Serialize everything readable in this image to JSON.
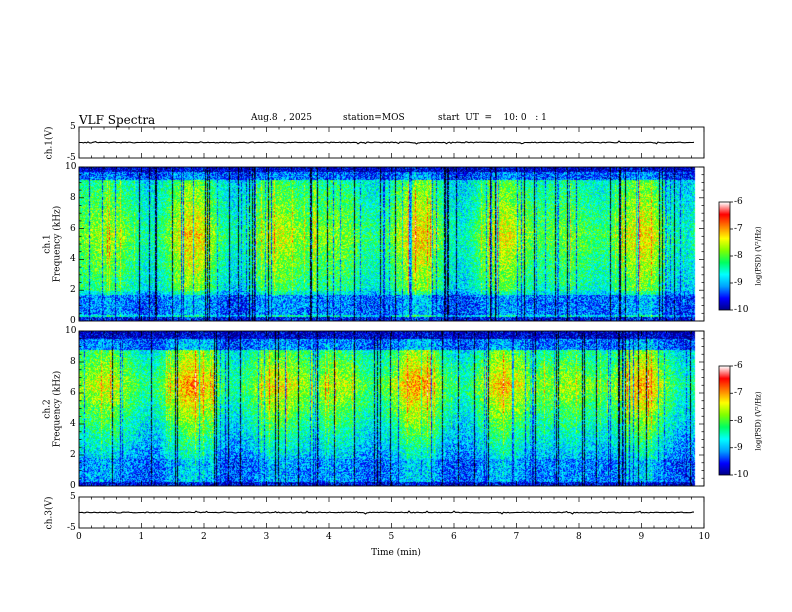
{
  "header": {
    "title": "VLF Spectra",
    "date": "Aug.8  , 2025",
    "station": "station=MOS",
    "start_ut": "start  UT  =    10: 0   : 1"
  },
  "colors": {
    "colormap": [
      "#000080",
      "#0000ff",
      "#00a0ff",
      "#00ffff",
      "#00ff60",
      "#80ff00",
      "#ffff00",
      "#ff8000",
      "#ff0000",
      "#ffffff"
    ],
    "axes": "#000000",
    "trace": "#000000"
  },
  "chart_data": [
    {
      "type": "line",
      "name": "ch1-waveform",
      "ylabel": "ch.1(V)",
      "ylim": [
        -5,
        5
      ],
      "yticks": [
        "5",
        "-5"
      ],
      "x_range_min": [
        0,
        9.85
      ],
      "approx_level": 0
    },
    {
      "type": "heatmap",
      "name": "ch1-spectrogram",
      "ylabel": "ch.1\nFrequency (kHz)",
      "ylabel_line1": "ch.1",
      "ylabel_line2": "Frequency (kHz)",
      "ylim": [
        0,
        10
      ],
      "yticks": [
        "0",
        "2",
        "4",
        "6",
        "8",
        "10"
      ],
      "xlim": [
        0,
        10
      ],
      "data_end_min": 9.85,
      "peak_band_khz": [
        2,
        9
      ],
      "colorbar": {
        "label": "log(PSD) (V²/Hz)",
        "range": [
          -10,
          -6
        ],
        "ticks": [
          "-6",
          "-7",
          "-8",
          "-9",
          "-10"
        ]
      }
    },
    {
      "type": "heatmap",
      "name": "ch2-spectrogram",
      "ylabel_line1": "ch.2",
      "ylabel_line2": "Frequency (kHz)",
      "ylim": [
        0,
        10
      ],
      "yticks": [
        "0",
        "2",
        "4",
        "6",
        "8",
        "10"
      ],
      "xlim": [
        0,
        10
      ],
      "data_end_min": 9.85,
      "peak_band_khz": [
        5,
        8
      ],
      "colorbar": {
        "label": "log(PSD) (V²/Hz)",
        "range": [
          -10,
          -6
        ],
        "ticks": [
          "-6",
          "-7",
          "-8",
          "-9",
          "-10"
        ]
      }
    },
    {
      "type": "line",
      "name": "ch3-waveform",
      "ylabel": "ch.3(V)",
      "ylim": [
        -5,
        5
      ],
      "yticks": [
        "5",
        "-5"
      ],
      "x_range_min": [
        0,
        9.85
      ],
      "approx_level": 0
    }
  ],
  "xaxis": {
    "label": "Time  (min)",
    "ticks": [
      "0",
      "1",
      "2",
      "3",
      "4",
      "5",
      "6",
      "7",
      "8",
      "9",
      "10"
    ],
    "range": [
      0,
      10
    ]
  }
}
